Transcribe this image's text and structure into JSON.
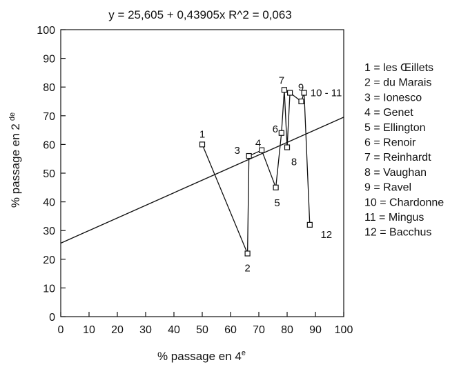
{
  "chart_data": {
    "type": "scatter",
    "title": "y = 25,605 + 0,43905x    R^2 = 0,063",
    "xlabel": "% passage en 4",
    "xlabel_sup": "e",
    "ylabel": "% passage en 2",
    "ylabel_sup": "de",
    "xlim": [
      0,
      100
    ],
    "ylim": [
      0,
      100
    ],
    "xticks": [
      "0",
      "10",
      "20",
      "30",
      "40",
      "50",
      "60",
      "70",
      "80",
      "90",
      "100"
    ],
    "yticks": [
      "0",
      "10",
      "20",
      "30",
      "40",
      "50",
      "60",
      "70",
      "80",
      "90",
      "100"
    ],
    "grid": false,
    "connected": true,
    "regression": {
      "intercept": 25.605,
      "slope": 0.43905
    },
    "points": [
      {
        "label": "1",
        "x": 50,
        "y": 60
      },
      {
        "label": "2",
        "x": 66,
        "y": 22
      },
      {
        "label": "3",
        "x": 66.5,
        "y": 56
      },
      {
        "label": "4",
        "x": 71,
        "y": 58
      },
      {
        "label": "5",
        "x": 76,
        "y": 45
      },
      {
        "label": "6",
        "x": 78,
        "y": 64
      },
      {
        "label": "7",
        "x": 79,
        "y": 79
      },
      {
        "label": "8",
        "x": 80,
        "y": 59
      },
      {
        "label": "9",
        "x": 81,
        "y": 78
      },
      {
        "label": "10",
        "x": 85,
        "y": 75
      },
      {
        "label": "11",
        "x": 86,
        "y": 78
      },
      {
        "label": "12",
        "x": 88,
        "y": 32
      }
    ],
    "point_labels": [
      {
        "text": "1",
        "point": 0
      },
      {
        "text": "2",
        "point": 1
      },
      {
        "text": "3",
        "point": 2
      },
      {
        "text": "4",
        "point": 3
      },
      {
        "text": "5",
        "point": 4
      },
      {
        "text": "6",
        "point": 5
      },
      {
        "text": "7",
        "point": 6
      },
      {
        "text": "8",
        "point": 7
      },
      {
        "text": "9",
        "point": 8
      },
      {
        "text": "10 - 11",
        "point": 10
      },
      {
        "text": "12",
        "point": 11
      }
    ],
    "legend_position": "right",
    "legend": [
      "1 = les Œillets",
      "2 = du Marais",
      "3 = Ionesco",
      "4 = Genet",
      "5 = Ellington",
      "6 = Renoir",
      "7 = Reinhardt",
      "8 = Vaughan",
      "9 = Ravel",
      "10 = Chardonne",
      "11 = Mingus",
      "12 = Bacchus"
    ]
  }
}
